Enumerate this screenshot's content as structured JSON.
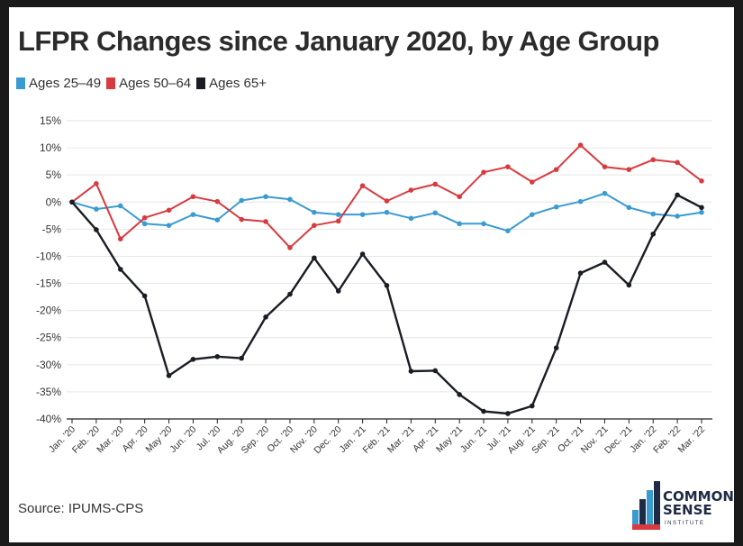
{
  "title": "LFPR Changes since January 2020, by Age Group",
  "source": "Source: IPUMS-CPS",
  "logo": {
    "line1": "COMMON",
    "line2": "SENSE",
    "line3": "INSTITUTE"
  },
  "colors": {
    "ages_25_49": "#3a9bd0",
    "ages_50_64": "#d83a3f",
    "ages_65_plus": "#1a1d24"
  },
  "chart_data": {
    "type": "line",
    "title": "LFPR Changes since January 2020, by Age Group",
    "xlabel": "",
    "ylabel": "",
    "ylim": [
      -40,
      15
    ],
    "yticks": [
      "15%",
      "10%",
      "5%",
      "0%",
      "-5%",
      "-10%",
      "-15%",
      "-20%",
      "-25%",
      "-30%",
      "-35%",
      "-40%"
    ],
    "ytick_values": [
      15,
      10,
      5,
      0,
      -5,
      -10,
      -15,
      -20,
      -25,
      -30,
      -35,
      -40
    ],
    "grid": true,
    "legend": "top-left",
    "categories": [
      "Jan. '20",
      "Feb. '20",
      "Mar. '20",
      "Apr. '20",
      "May '20",
      "Jun. '20",
      "Jul. '20",
      "Aug. '20",
      "Sep. '20",
      "Oct. '20",
      "Nov. '20",
      "Dec. '20",
      "Jan. '21",
      "Feb. '21",
      "Mar. '21",
      "Apr. '21",
      "May '21",
      "Jun. '21",
      "Jul. '21",
      "Aug. '21",
      "Sep. '21",
      "Oct. '21",
      "Nov. '21",
      "Dec. '21",
      "Jan. '22",
      "Feb. '22",
      "Mar. '22"
    ],
    "series": [
      {
        "name": "Ages 25–49",
        "color": "#3a9bd0",
        "values": [
          0,
          -1.3,
          -0.7,
          -4.0,
          -4.3,
          -2.3,
          -3.3,
          0.3,
          1.0,
          0.5,
          -1.9,
          -2.3,
          -2.3,
          -1.9,
          -3.0,
          -2.0,
          -4.0,
          -4.0,
          -5.3,
          -2.3,
          -0.9,
          0.1,
          1.6,
          -1.0,
          -2.2,
          -2.6,
          -1.9
        ]
      },
      {
        "name": "Ages 50–64",
        "color": "#d83a3f",
        "values": [
          0,
          3.4,
          -6.8,
          -2.9,
          -1.5,
          1.0,
          0.1,
          -3.2,
          -3.6,
          -8.4,
          -4.3,
          -3.5,
          3.0,
          0.2,
          2.2,
          3.3,
          1.0,
          5.5,
          6.5,
          3.7,
          6.0,
          10.5,
          6.5,
          6.0,
          7.8,
          7.3,
          3.9
        ]
      },
      {
        "name": "Ages 65+",
        "color": "#1a1d24",
        "values": [
          0,
          -5.1,
          -12.4,
          -17.3,
          -32.0,
          -29.0,
          -28.5,
          -28.8,
          -21.2,
          -17.0,
          -10.3,
          -16.4,
          -9.6,
          -15.4,
          -31.2,
          -31.1,
          -35.5,
          -38.6,
          -39.0,
          -37.6,
          -26.9,
          -13.1,
          -11.1,
          -15.3,
          -5.9,
          1.3,
          -1.0
        ]
      }
    ]
  }
}
